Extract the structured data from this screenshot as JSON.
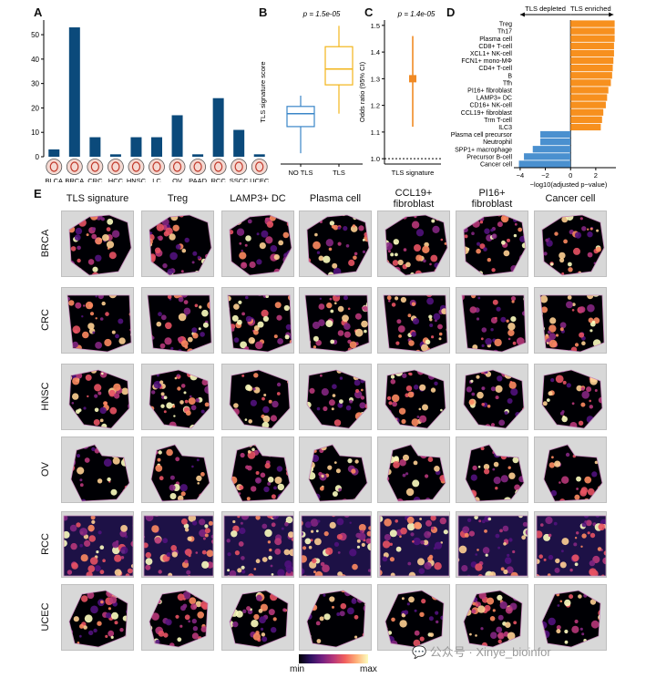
{
  "panels": {
    "a": "A",
    "b": "B",
    "c": "C",
    "d": "D",
    "e": "E"
  },
  "chart_data": [
    {
      "type": "bar",
      "panel": "A",
      "categories": [
        "BLCA",
        "BRCA",
        "CRC",
        "HCC",
        "HNSC",
        "LC",
        "OV",
        "PAAD",
        "RCC",
        "SSCC",
        "UCEC"
      ],
      "values": [
        3,
        53,
        8,
        1,
        8,
        8,
        17,
        1,
        24,
        11,
        1
      ],
      "yticks": [
        "0",
        "10",
        "20",
        "30",
        "40",
        "50"
      ],
      "ylim": [
        0,
        56
      ],
      "color": "#0b4a7b"
    },
    {
      "type": "box",
      "panel": "B",
      "title": "p = 1.5e-05",
      "ylabel": "TLS signature score",
      "categories": [
        "NO TLS",
        "TLS"
      ],
      "colors": [
        "#3a86c8",
        "#f2b51a"
      ],
      "boxes": [
        {
          "min": -0.85,
          "q1": -0.48,
          "median": -0.3,
          "q3": -0.2,
          "max": -0.05
        },
        {
          "min": -0.3,
          "q1": 0.1,
          "median": 0.32,
          "q3": 0.63,
          "max": 0.92
        }
      ],
      "ylim": [
        -1,
        1
      ]
    },
    {
      "type": "errorbar",
      "panel": "C",
      "title": "p = 1.4e-05",
      "ylabel": "Odds ratio (95% CI)",
      "category": "TLS signature",
      "estimate": 1.3,
      "ci": [
        1.12,
        1.46
      ],
      "reference": 1.0,
      "yticks": [
        "1.0",
        "1.1",
        "1.2",
        "1.3",
        "1.4",
        "1.5"
      ],
      "ylim": [
        0.98,
        1.52
      ],
      "color": "#f08a24"
    },
    {
      "type": "bar",
      "panel": "D",
      "orientation": "horizontal",
      "left_header": "TLS depleted",
      "right_header": "TLS enriched",
      "xlabel": "−log10(adjusted p−value)",
      "xticks": [
        "−4",
        "−2",
        "0",
        "2"
      ],
      "xlim": [
        -4.5,
        3.6
      ],
      "categories": [
        "Treg",
        "Th17",
        "Plasma cell",
        "CD8+ T-cell",
        "XCL1+ NK-cell",
        "FCN1+ mono-MΦ",
        "CD4+ T-cell",
        "B",
        "Tfh",
        "PI16+ fibroblast",
        "LAMP3+ DC",
        "CD16+ NK-cell",
        "CCL19+ fibroblast",
        "Trm T-cell",
        "ILC3",
        "Plasma cell precursor",
        "Neutrophil",
        "SPP1+ macrophage",
        "Precursor B-cell",
        "Cancer cell"
      ],
      "values": [
        3.5,
        3.5,
        3.5,
        3.45,
        3.45,
        3.4,
        3.35,
        3.3,
        3.2,
        3.0,
        2.9,
        2.8,
        2.6,
        2.5,
        2.4,
        -2.4,
        -2.4,
        -3.0,
        -3.7,
        -4.1
      ],
      "colors": {
        "enriched": "#f7901e",
        "depleted": "#4a90cf"
      }
    }
  ],
  "panel_e": {
    "columns": [
      "TLS signature",
      "Treg",
      "LAMP3+ DC",
      "Plasma cell",
      "CCL19+\nfibroblast",
      "PI16+\nfibroblast",
      "Cancer cell"
    ],
    "rows": [
      "BRCA",
      "CRC",
      "HNSC",
      "OV",
      "RCC",
      "UCEC"
    ],
    "colorbar": {
      "min": "min",
      "max": "max"
    }
  },
  "watermark": "💬 公众号 · Xinye_bioinfor"
}
